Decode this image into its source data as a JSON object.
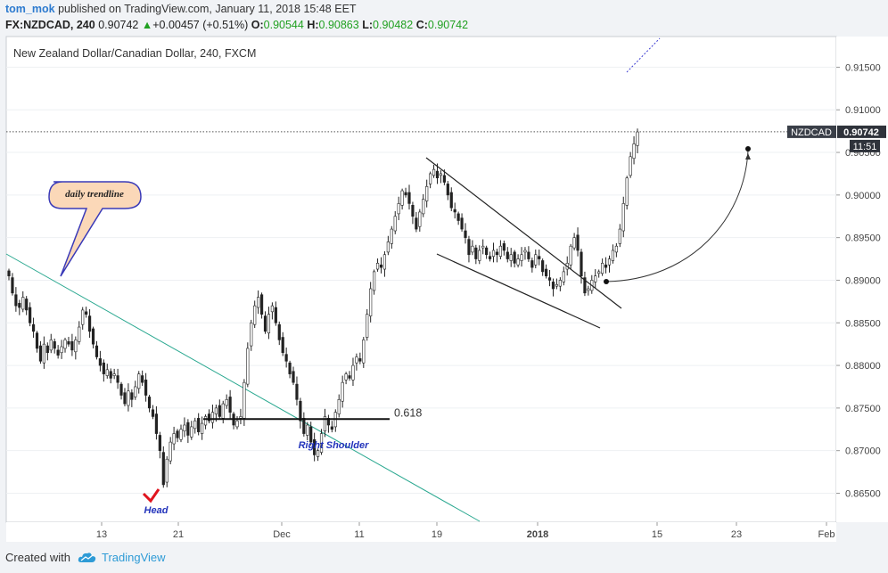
{
  "header": {
    "user": "tom_mok",
    "published_text": "published on TradingView.com, January 11, 2018 15:48 EET",
    "symbol": "FX:NZDCAD, 240",
    "last": "0.90742",
    "change": "+0.00457 (+0.51%)",
    "o_label": "O:",
    "o_value": "0.90544",
    "h_label": "H:",
    "h_value": "0.90863",
    "l_label": "L:",
    "l_value": "0.90482",
    "c_label": "C:",
    "c_value": "0.90742"
  },
  "footer": {
    "created_with": "Created with",
    "brand": "TradingView",
    "logo_icon": "tradingview-cloud-icon"
  },
  "colors": {
    "up": "#21a021",
    "brand": "#2e9bd6",
    "trendline": "#2aa890",
    "annotation_text": "#2233bb",
    "head_marker": "#e0141e",
    "callout_fill": "#fbd8b8",
    "callout_border": "#3a3ab8"
  },
  "chart_data": {
    "type": "candlestick",
    "title": "New Zealand Dollar/Canadian Dollar, 240, FXCM",
    "price_ticks": [
      "0.91500",
      "0.91000",
      "0.90500",
      "0.90000",
      "0.89500",
      "0.89000",
      "0.88500",
      "0.88000",
      "0.87500",
      "0.87000",
      "0.86500"
    ],
    "time_ticks": [
      "13",
      "21",
      "Dec",
      "11",
      "19",
      "2018",
      "15",
      "23",
      "Feb"
    ],
    "ylim": [
      0.8616,
      0.9186
    ],
    "price_tag": {
      "symbol": "NZDCAD",
      "price": "0.90742",
      "countdown": "11:51"
    },
    "fib_label": "0.618",
    "fib_level": 0.8737,
    "annotations": {
      "callout": "daily trendline",
      "head": "Head",
      "right_shoulder": "Right Shoulder"
    },
    "closes": [
      0.8905,
      0.8885,
      0.887,
      0.8868,
      0.888,
      0.8865,
      0.885,
      0.884,
      0.882,
      0.8805,
      0.8825,
      0.8815,
      0.883,
      0.882,
      0.8812,
      0.8822,
      0.883,
      0.8825,
      0.8818,
      0.883,
      0.8845,
      0.8865,
      0.886,
      0.884,
      0.8825,
      0.881,
      0.88,
      0.879,
      0.8795,
      0.8785,
      0.879,
      0.878,
      0.8765,
      0.8755,
      0.877,
      0.876,
      0.8775,
      0.879,
      0.878,
      0.8765,
      0.875,
      0.874,
      0.872,
      0.87,
      0.866,
      0.869,
      0.871,
      0.872,
      0.8715,
      0.8725,
      0.873,
      0.8718,
      0.8728,
      0.8735,
      0.8722,
      0.8732,
      0.874,
      0.8735,
      0.8745,
      0.875,
      0.874,
      0.8755,
      0.876,
      0.8745,
      0.873,
      0.8735,
      0.874,
      0.878,
      0.882,
      0.885,
      0.887,
      0.888,
      0.886,
      0.884,
      0.886,
      0.887,
      0.885,
      0.883,
      0.8815,
      0.8805,
      0.879,
      0.878,
      0.876,
      0.8735,
      0.872,
      0.873,
      0.871,
      0.8695,
      0.87,
      0.872,
      0.874,
      0.873,
      0.8725,
      0.8745,
      0.876,
      0.878,
      0.879,
      0.8785,
      0.88,
      0.881,
      0.8805,
      0.883,
      0.886,
      0.889,
      0.891,
      0.892,
      0.8915,
      0.893,
      0.8945,
      0.896,
      0.8975,
      0.899,
      0.9005,
      0.9,
      0.899,
      0.8975,
      0.896,
      0.898,
      0.8995,
      0.901,
      0.9025,
      0.903,
      0.902,
      0.9025,
      0.9015,
      0.9,
      0.8985,
      0.898,
      0.897,
      0.896,
      0.895,
      0.893,
      0.894,
      0.8925,
      0.8935,
      0.894,
      0.893,
      0.8925,
      0.8935,
      0.893,
      0.894,
      0.8935,
      0.8925,
      0.893,
      0.892,
      0.8925,
      0.893,
      0.8935,
      0.8925,
      0.8915,
      0.893,
      0.8925,
      0.891,
      0.8905,
      0.89,
      0.889,
      0.8895,
      0.89,
      0.891,
      0.892,
      0.894,
      0.895,
      0.8935,
      0.8905,
      0.8885,
      0.889,
      0.89,
      0.8905,
      0.891,
      0.892,
      0.8915,
      0.8925,
      0.8935,
      0.894,
      0.896,
      0.899,
      0.902,
      0.9045,
      0.906,
      0.9074
    ]
  }
}
